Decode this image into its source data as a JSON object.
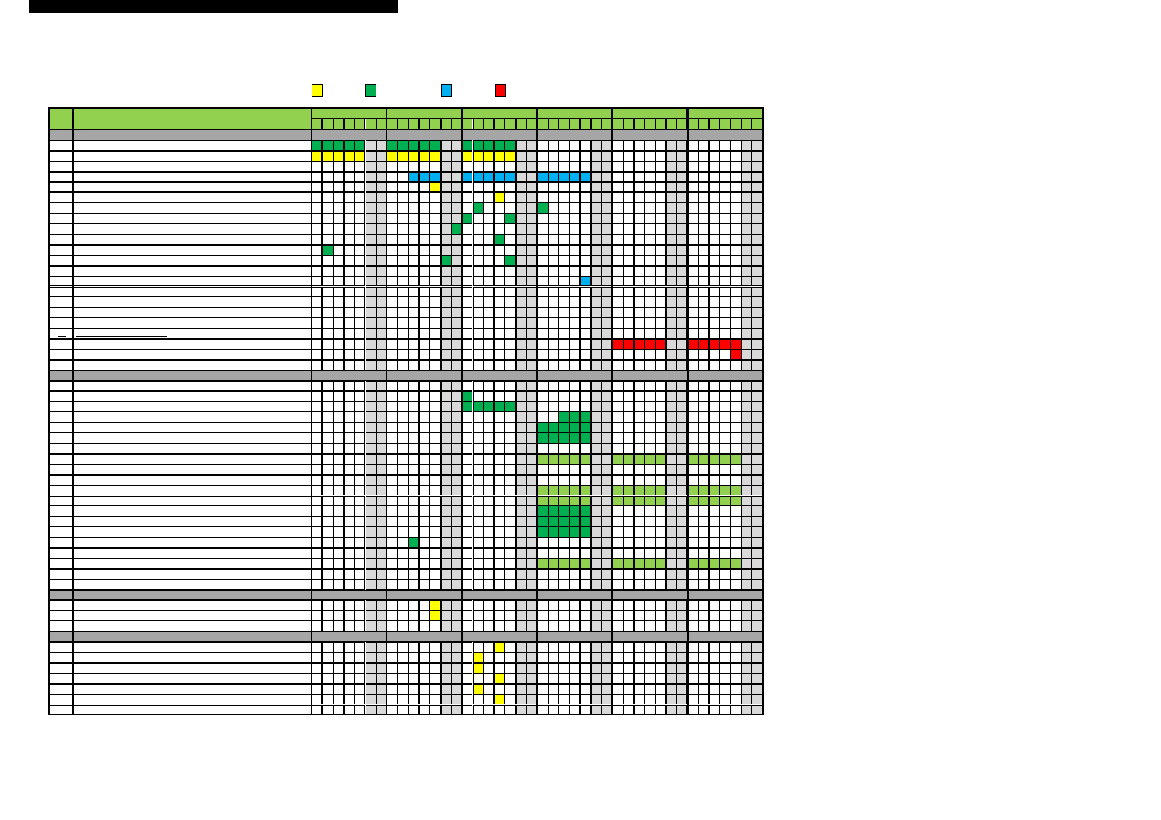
{
  "legend": [
    {
      "label": "",
      "color": "#FFFF00",
      "icon": "yellow-square-icon"
    },
    {
      "label": "",
      "color": "#00B050",
      "icon": "green-square-icon"
    },
    {
      "label": "",
      "color": "#00B0F0",
      "icon": "blue-square-icon"
    },
    {
      "label": "",
      "color": "#FF0000",
      "icon": "red-square-icon"
    }
  ],
  "colors": {
    "header_green": "#92D050",
    "section_gray": "#A6A6A6",
    "weekend_gray": "#D9D9D9",
    "Y": "#FFFF00",
    "G": "#00B050",
    "B": "#00B0F0",
    "R": "#FF0000",
    "L": "#92D050"
  },
  "schedule": {
    "header": {
      "no": "",
      "item": "",
      "months": [
        "",
        "",
        "",
        "",
        "",
        ""
      ]
    },
    "days_per_month": 7,
    "weekend_day_indices": [
      5,
      6
    ],
    "rows": [
      {
        "type": "section"
      },
      {
        "type": "task",
        "marks": {
          "G": [
            [
              0,
              0
            ],
            [
              0,
              1
            ],
            [
              0,
              2
            ],
            [
              0,
              3
            ],
            [
              0,
              4
            ],
            [
              1,
              0
            ],
            [
              1,
              1
            ],
            [
              1,
              2
            ],
            [
              1,
              3
            ],
            [
              1,
              4
            ],
            [
              2,
              0
            ],
            [
              2,
              1
            ],
            [
              2,
              2
            ],
            [
              2,
              3
            ],
            [
              2,
              4
            ]
          ]
        }
      },
      {
        "type": "task",
        "marks": {
          "Y": [
            [
              0,
              0
            ],
            [
              0,
              1
            ],
            [
              0,
              2
            ],
            [
              0,
              3
            ],
            [
              0,
              4
            ],
            [
              1,
              0
            ],
            [
              1,
              1
            ],
            [
              1,
              2
            ],
            [
              1,
              3
            ],
            [
              1,
              4
            ],
            [
              2,
              0
            ],
            [
              2,
              1
            ],
            [
              2,
              2
            ],
            [
              2,
              3
            ],
            [
              2,
              4
            ]
          ]
        }
      },
      {
        "type": "task",
        "marks": {}
      },
      {
        "type": "task",
        "marks": {
          "B": [
            [
              1,
              2
            ],
            [
              1,
              3
            ],
            [
              1,
              4
            ],
            [
              2,
              0
            ],
            [
              2,
              1
            ],
            [
              2,
              2
            ],
            [
              2,
              3
            ],
            [
              2,
              4
            ],
            [
              3,
              0
            ],
            [
              3,
              1
            ],
            [
              3,
              2
            ],
            [
              3,
              3
            ],
            [
              3,
              4
            ]
          ]
        }
      },
      {
        "type": "task",
        "marks": {
          "Y": [
            [
              1,
              4
            ]
          ]
        }
      },
      {
        "type": "task",
        "marks": {
          "Y": [
            [
              2,
              3
            ]
          ]
        }
      },
      {
        "type": "task",
        "marks": {
          "G": [
            [
              2,
              1
            ],
            [
              3,
              0
            ]
          ]
        }
      },
      {
        "type": "task",
        "marks": {
          "G": [
            [
              2,
              0
            ],
            [
              2,
              4
            ]
          ]
        }
      },
      {
        "type": "task",
        "marks": {
          "G": [
            [
              1,
              6
            ]
          ]
        }
      },
      {
        "type": "task",
        "marks": {
          "G": [
            [
              2,
              3
            ]
          ]
        }
      },
      {
        "type": "task",
        "marks": {
          "G": [
            [
              0,
              1
            ]
          ]
        }
      },
      {
        "type": "task",
        "marks": {
          "G": [
            [
              1,
              5
            ],
            [
              2,
              4
            ]
          ]
        }
      },
      {
        "type": "task",
        "link": true,
        "marks": {}
      },
      {
        "type": "task",
        "marks": {
          "B": [
            [
              3,
              4
            ]
          ]
        }
      },
      {
        "type": "task",
        "marks": {}
      },
      {
        "type": "task",
        "marks": {}
      },
      {
        "type": "task",
        "marks": {}
      },
      {
        "type": "task",
        "marks": {}
      },
      {
        "type": "task",
        "link": true,
        "marks": {}
      },
      {
        "type": "task",
        "marks": {
          "R": [
            [
              4,
              0
            ],
            [
              4,
              1
            ],
            [
              4,
              2
            ],
            [
              4,
              3
            ],
            [
              4,
              4
            ],
            [
              5,
              0
            ],
            [
              5,
              1
            ],
            [
              5,
              2
            ],
            [
              5,
              3
            ],
            [
              5,
              4
            ]
          ]
        }
      },
      {
        "type": "task",
        "marks": {
          "R": [
            [
              5,
              4
            ]
          ]
        }
      },
      {
        "type": "task",
        "marks": {}
      },
      {
        "type": "section"
      },
      {
        "type": "task",
        "marks": {}
      },
      {
        "type": "task",
        "marks": {
          "G": [
            [
              2,
              0
            ]
          ]
        }
      },
      {
        "type": "task",
        "marks": {
          "G": [
            [
              2,
              0
            ],
            [
              2,
              1
            ],
            [
              2,
              2
            ],
            [
              2,
              3
            ],
            [
              2,
              4
            ]
          ]
        }
      },
      {
        "type": "task",
        "marks": {
          "G": [
            [
              3,
              2
            ],
            [
              3,
              3
            ],
            [
              3,
              4
            ]
          ]
        }
      },
      {
        "type": "task",
        "marks": {
          "G": [
            [
              3,
              0
            ],
            [
              3,
              1
            ],
            [
              3,
              2
            ],
            [
              3,
              3
            ],
            [
              3,
              4
            ]
          ]
        }
      },
      {
        "type": "task",
        "marks": {
          "G": [
            [
              3,
              0
            ],
            [
              3,
              1
            ],
            [
              3,
              2
            ],
            [
              3,
              3
            ],
            [
              3,
              4
            ]
          ]
        }
      },
      {
        "type": "task",
        "marks": {}
      },
      {
        "type": "task",
        "marks": {
          "L": [
            [
              3,
              0
            ],
            [
              3,
              1
            ],
            [
              3,
              2
            ],
            [
              3,
              3
            ],
            [
              3,
              4
            ],
            [
              4,
              0
            ],
            [
              4,
              1
            ],
            [
              4,
              2
            ],
            [
              4,
              3
            ],
            [
              4,
              4
            ],
            [
              5,
              0
            ],
            [
              5,
              1
            ],
            [
              5,
              2
            ],
            [
              5,
              3
            ],
            [
              5,
              4
            ]
          ]
        }
      },
      {
        "type": "task",
        "marks": {}
      },
      {
        "type": "task",
        "marks": {}
      },
      {
        "type": "task",
        "marks": {
          "L": [
            [
              3,
              0
            ],
            [
              3,
              1
            ],
            [
              3,
              2
            ],
            [
              3,
              3
            ],
            [
              3,
              4
            ],
            [
              4,
              0
            ],
            [
              4,
              1
            ],
            [
              4,
              2
            ],
            [
              4,
              3
            ],
            [
              4,
              4
            ],
            [
              5,
              0
            ],
            [
              5,
              1
            ],
            [
              5,
              2
            ],
            [
              5,
              3
            ],
            [
              5,
              4
            ]
          ]
        }
      },
      {
        "type": "task",
        "marks": {
          "L": [
            [
              3,
              0
            ],
            [
              3,
              1
            ],
            [
              3,
              2
            ],
            [
              3,
              3
            ],
            [
              3,
              4
            ],
            [
              4,
              0
            ],
            [
              4,
              1
            ],
            [
              4,
              2
            ],
            [
              4,
              3
            ],
            [
              4,
              4
            ],
            [
              5,
              0
            ],
            [
              5,
              1
            ],
            [
              5,
              2
            ],
            [
              5,
              3
            ],
            [
              5,
              4
            ]
          ]
        }
      },
      {
        "type": "task",
        "marks": {
          "G": [
            [
              3,
              0
            ],
            [
              3,
              1
            ],
            [
              3,
              2
            ],
            [
              3,
              3
            ],
            [
              3,
              4
            ]
          ]
        }
      },
      {
        "type": "task",
        "marks": {
          "G": [
            [
              3,
              0
            ],
            [
              3,
              1
            ],
            [
              3,
              2
            ],
            [
              3,
              3
            ],
            [
              3,
              4
            ]
          ]
        }
      },
      {
        "type": "task",
        "marks": {
          "G": [
            [
              3,
              0
            ],
            [
              3,
              1
            ],
            [
              3,
              2
            ],
            [
              3,
              3
            ],
            [
              3,
              4
            ]
          ]
        }
      },
      {
        "type": "task",
        "marks": {
          "G": [
            [
              1,
              2
            ]
          ]
        }
      },
      {
        "type": "task",
        "marks": {}
      },
      {
        "type": "task",
        "marks": {
          "L": [
            [
              3,
              0
            ],
            [
              3,
              1
            ],
            [
              3,
              2
            ],
            [
              3,
              3
            ],
            [
              3,
              4
            ],
            [
              4,
              0
            ],
            [
              4,
              1
            ],
            [
              4,
              2
            ],
            [
              4,
              3
            ],
            [
              4,
              4
            ],
            [
              5,
              0
            ],
            [
              5,
              1
            ],
            [
              5,
              2
            ],
            [
              5,
              3
            ],
            [
              5,
              4
            ]
          ]
        }
      },
      {
        "type": "task",
        "marks": {}
      },
      {
        "type": "task",
        "marks": {}
      },
      {
        "type": "section"
      },
      {
        "type": "task",
        "marks": {
          "Y": [
            [
              1,
              4
            ]
          ]
        }
      },
      {
        "type": "task",
        "marks": {
          "Y": [
            [
              1,
              4
            ]
          ]
        }
      },
      {
        "type": "task",
        "marks": {}
      },
      {
        "type": "section"
      },
      {
        "type": "task",
        "marks": {
          "Y": [
            [
              2,
              3
            ]
          ]
        }
      },
      {
        "type": "task",
        "marks": {
          "Y": [
            [
              2,
              1
            ]
          ]
        }
      },
      {
        "type": "task",
        "marks": {
          "Y": [
            [
              2,
              1
            ]
          ]
        }
      },
      {
        "type": "task",
        "marks": {
          "Y": [
            [
              2,
              3
            ]
          ]
        }
      },
      {
        "type": "task",
        "marks": {
          "Y": [
            [
              2,
              1
            ]
          ]
        }
      },
      {
        "type": "task",
        "marks": {
          "Y": [
            [
              2,
              3
            ]
          ]
        }
      },
      {
        "type": "task",
        "marks": {}
      }
    ]
  }
}
